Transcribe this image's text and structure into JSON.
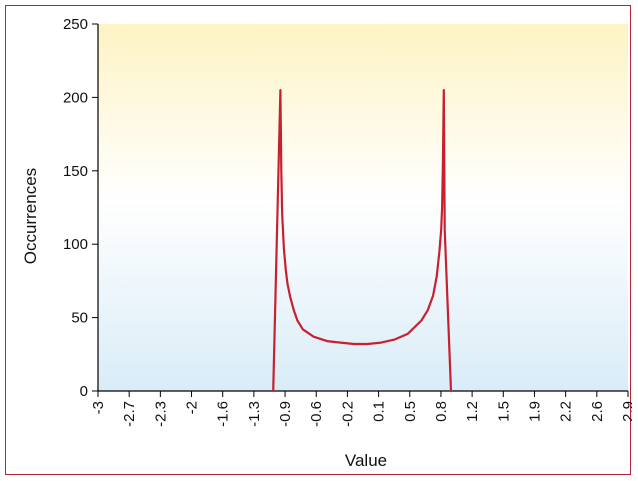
{
  "chart_data": {
    "type": "line",
    "title": "",
    "xlabel": "Value",
    "ylabel": "Occurrences",
    "xlim": [
      -3,
      2.9
    ],
    "ylim": [
      0,
      250
    ],
    "x_ticks": [
      "-3",
      "-2.7",
      "-2.3",
      "-2",
      "-1.6",
      "-1.3",
      "-0.9",
      "-0.6",
      "-0.2",
      "0.1",
      "0.5",
      "0.8",
      "1.2",
      "1.5",
      "1.9",
      "2.2",
      "2.6",
      "2.9"
    ],
    "y_ticks": [
      "0",
      "50",
      "100",
      "150",
      "200",
      "250"
    ],
    "grid": false,
    "legend": "none",
    "colors": {
      "line": "#c8202f",
      "bg_top": "#fdf3c4",
      "bg_mid": "#ffffff",
      "bg_bottom": "#d9ecf7",
      "frame": "#b3243a"
    },
    "series": [
      {
        "x": [
          -1.05,
          -0.97,
          -0.96,
          -0.95,
          -0.93,
          -0.91,
          -0.89,
          -0.86,
          -0.82,
          -0.78,
          -0.72,
          -0.6,
          -0.45,
          -0.3,
          -0.15,
          0.0,
          0.15,
          0.3,
          0.45,
          0.6,
          0.67,
          0.73,
          0.77,
          0.8,
          0.82,
          0.83,
          0.84,
          0.85,
          0.86,
          0.93
        ],
        "y": [
          0,
          205,
          150,
          120,
          97,
          83,
          73,
          64,
          55,
          48,
          42,
          37,
          34,
          33,
          32,
          32,
          33,
          35,
          39,
          48,
          55,
          65,
          78,
          95,
          110,
          125,
          155,
          205,
          110,
          0
        ]
      }
    ]
  }
}
